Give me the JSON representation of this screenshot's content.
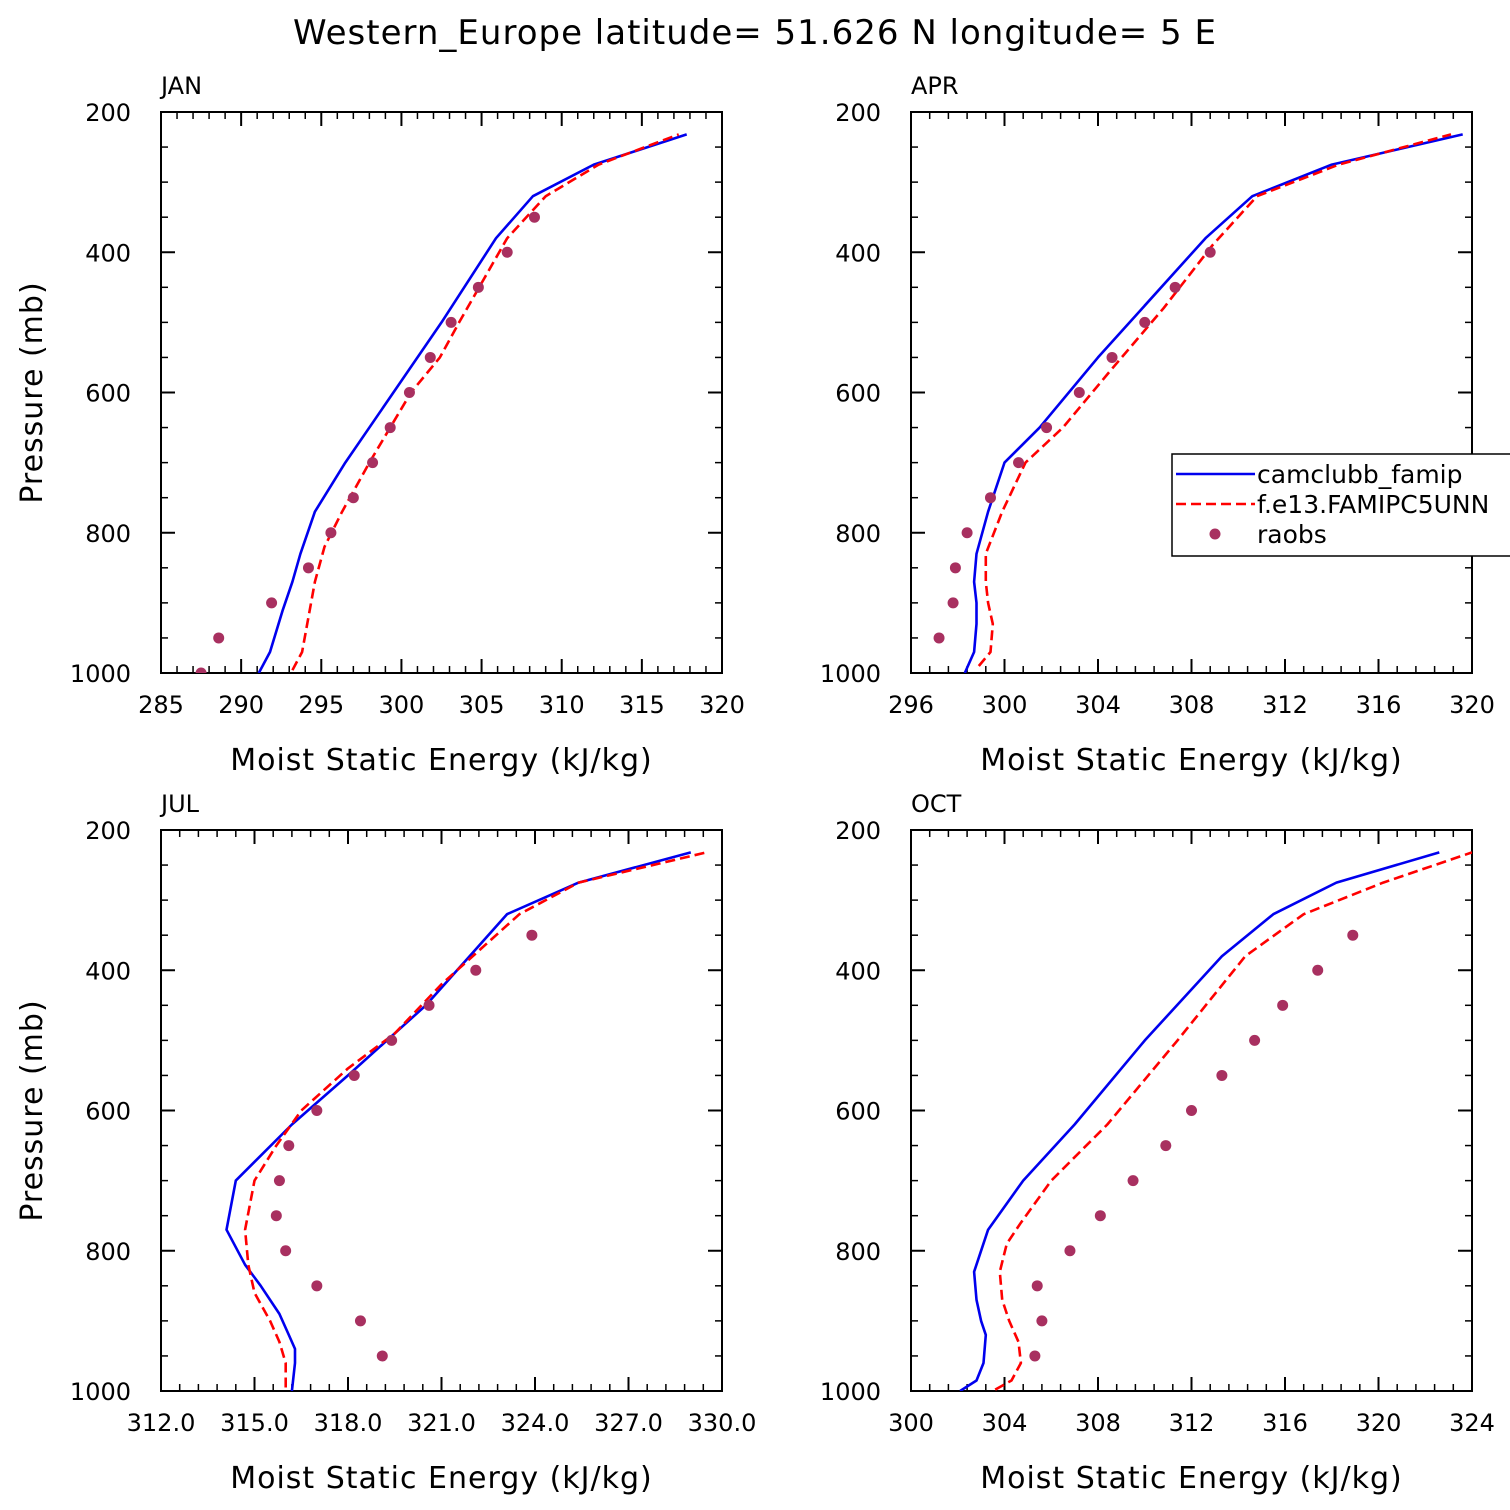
{
  "figure": {
    "title": "Western_Europe  latitude= 51.626 N longitude= 5 E"
  },
  "chart_data": [
    {
      "type": "line",
      "title": "JAN",
      "xlabel": "Moist Static Energy (kJ/kg)",
      "ylabel": "Pressure (mb)",
      "xlim": [
        285,
        320
      ],
      "ylim": [
        1000,
        200
      ],
      "y_reversed": true,
      "xticks": [
        285,
        290,
        295,
        300,
        305,
        310,
        315,
        320
      ],
      "xtick_labels": [
        "285",
        "290",
        "295",
        "300",
        "305",
        "310",
        "315",
        "320"
      ],
      "yticks": [
        200,
        400,
        600,
        800,
        1000
      ],
      "ytick_labels": [
        "200",
        "400",
        "600",
        "800",
        "1000"
      ],
      "legend": false,
      "series": [
        {
          "name": "camclubb_famip",
          "style": "solid",
          "color": "#0000ee",
          "x": [
            291.1,
            291.8,
            292.6,
            293.2,
            293.7,
            294.6,
            296.5,
            299.5,
            302.5,
            305.9,
            308.2,
            312.0,
            317.8
          ],
          "y": [
            1000,
            970,
            910,
            870,
            830,
            770,
            700,
            600,
            500,
            380,
            320,
            275,
            232
          ]
        },
        {
          "name": "f.e13.FAMIPC5UNNB",
          "style": "dashed",
          "color": "#ff0000",
          "x": [
            293.2,
            293.8,
            294.2,
            294.6,
            295.2,
            296.3,
            298.0,
            300.6,
            302.4,
            303.6,
            306.6,
            309.0,
            312.3,
            317.3
          ],
          "y": [
            996,
            970,
            920,
            870,
            820,
            770,
            700,
            600,
            550,
            500,
            380,
            320,
            275,
            232
          ]
        },
        {
          "name": "raobs",
          "style": "markers",
          "color": "#a83060",
          "x": [
            287.5,
            288.6,
            291.9,
            294.2,
            295.6,
            297.0,
            298.2,
            299.3,
            300.5,
            301.8,
            303.1,
            304.8,
            306.6,
            308.3
          ],
          "y": [
            1000,
            950,
            900,
            850,
            800,
            750,
            700,
            650,
            600,
            550,
            500,
            450,
            400,
            350
          ]
        }
      ]
    },
    {
      "type": "line",
      "title": "APR",
      "xlabel": "Moist Static Energy (kJ/kg)",
      "ylabel": "",
      "xlim": [
        296,
        320
      ],
      "ylim": [
        1000,
        200
      ],
      "y_reversed": true,
      "xticks": [
        296,
        300,
        304,
        308,
        312,
        316,
        320
      ],
      "xtick_labels": [
        "296",
        "300",
        "304",
        "308",
        "312",
        "316",
        "320"
      ],
      "yticks": [
        200,
        400,
        600,
        800,
        1000
      ],
      "ytick_labels": [
        "200",
        "400",
        "600",
        "800",
        "1000"
      ],
      "legend": true,
      "legend_position": "right",
      "legend_labels": [
        "camclubb_famip",
        "f.e13.FAMIPC5UNN",
        "raobs"
      ],
      "series": [
        {
          "name": "camclubb_famip",
          "style": "solid",
          "color": "#0000ee",
          "x": [
            298.3,
            298.7,
            298.8,
            298.8,
            298.7,
            298.8,
            299.3,
            300.0,
            301.5,
            304.0,
            308.6,
            310.6,
            314.0,
            319.6
          ],
          "y": [
            1000,
            970,
            930,
            900,
            870,
            830,
            770,
            700,
            650,
            550,
            380,
            320,
            275,
            232
          ]
        },
        {
          "name": "f.e13.FAMIPC5UNN",
          "style": "dashed",
          "color": "#ff0000",
          "x": [
            298.9,
            299.4,
            299.5,
            299.3,
            299.2,
            299.2,
            299.9,
            300.9,
            302.5,
            304.5,
            306.8,
            308.9,
            310.8,
            314.3,
            319.1
          ],
          "y": [
            990,
            970,
            930,
            900,
            870,
            830,
            770,
            700,
            650,
            570,
            480,
            390,
            320,
            275,
            232
          ]
        },
        {
          "name": "raobs",
          "style": "markers",
          "color": "#a83060",
          "x": [
            297.2,
            297.8,
            297.9,
            298.4,
            299.4,
            300.6,
            301.8,
            303.2,
            304.6,
            306.0,
            307.3,
            308.8
          ],
          "y": [
            950,
            900,
            850,
            800,
            750,
            700,
            650,
            600,
            550,
            500,
            450,
            400
          ]
        }
      ]
    },
    {
      "type": "line",
      "title": "JUL",
      "xlabel": "Moist Static Energy (kJ/kg)",
      "ylabel": "Pressure (mb)",
      "xlim": [
        312,
        330
      ],
      "ylim": [
        1000,
        200
      ],
      "y_reversed": true,
      "xticks": [
        312,
        315,
        318,
        321,
        324,
        327,
        330
      ],
      "xtick_labels": [
        "312.0",
        "315.0",
        "318.0",
        "321.0",
        "324.0",
        "327.0",
        "330.0"
      ],
      "yticks": [
        200,
        400,
        600,
        800,
        1000
      ],
      "ytick_labels": [
        "200",
        "400",
        "600",
        "800",
        "1000"
      ],
      "legend": false,
      "series": [
        {
          "name": "camclubb_famip",
          "style": "solid",
          "color": "#0000ee",
          "x": [
            316.2,
            316.3,
            316.3,
            316.1,
            315.8,
            315.2,
            314.7,
            314.1,
            314.4,
            316.2,
            318.0,
            320.5,
            323.1,
            325.4,
            329.0
          ],
          "y": [
            1000,
            960,
            940,
            920,
            890,
            850,
            820,
            770,
            700,
            620,
            550,
            450,
            320,
            275,
            232
          ]
        },
        {
          "name": "f.e13.FAMIPC5UNNB",
          "style": "dashed",
          "color": "#ff0000",
          "x": [
            316.0,
            316.0,
            315.8,
            315.5,
            315.0,
            314.8,
            314.7,
            315.0,
            315.7,
            316.5,
            318.0,
            319.5,
            321.0,
            323.5,
            325.4,
            329.5
          ],
          "y": [
            995,
            960,
            930,
            900,
            860,
            820,
            770,
            700,
            650,
            600,
            540,
            490,
            420,
            320,
            275,
            232
          ]
        },
        {
          "name": "raobs",
          "style": "markers",
          "color": "#a83060",
          "x": [
            319.1,
            318.4,
            317.0,
            316.0,
            315.7,
            315.8,
            316.1,
            317.0,
            318.2,
            319.4,
            320.6,
            322.1,
            323.9
          ],
          "y": [
            950,
            900,
            850,
            800,
            750,
            700,
            650,
            600,
            550,
            500,
            450,
            400,
            350
          ]
        }
      ]
    },
    {
      "type": "line",
      "title": "OCT",
      "xlabel": "Moist Static Energy (kJ/kg)",
      "ylabel": "",
      "xlim": [
        300,
        324
      ],
      "ylim": [
        1000,
        200
      ],
      "y_reversed": true,
      "xticks": [
        300,
        304,
        308,
        312,
        316,
        320,
        324
      ],
      "xtick_labels": [
        "300",
        "304",
        "308",
        "312",
        "316",
        "320",
        "324"
      ],
      "yticks": [
        200,
        400,
        600,
        800,
        1000
      ],
      "ytick_labels": [
        "200",
        "400",
        "600",
        "800",
        "1000"
      ],
      "legend": false,
      "series": [
        {
          "name": "camclubb_famip",
          "style": "solid",
          "color": "#0000ee",
          "x": [
            302.1,
            302.8,
            303.1,
            303.2,
            303.0,
            302.8,
            302.7,
            303.3,
            304.8,
            307.0,
            310.0,
            313.3,
            315.5,
            318.2,
            322.6
          ],
          "y": [
            1000,
            985,
            960,
            920,
            900,
            870,
            830,
            770,
            700,
            620,
            500,
            380,
            320,
            275,
            232
          ]
        },
        {
          "name": "f.e13.FAMIPC5UNNB",
          "style": "dashed",
          "color": "#ff0000",
          "x": [
            303.6,
            304.3,
            304.7,
            304.6,
            304.2,
            303.9,
            303.8,
            304.1,
            304.7,
            306.0,
            308.4,
            311.4,
            314.3,
            316.8,
            320.2,
            324.0
          ],
          "y": [
            998,
            985,
            960,
            930,
            900,
            870,
            830,
            790,
            760,
            700,
            620,
            500,
            380,
            320,
            275,
            232
          ]
        },
        {
          "name": "raobs",
          "style": "markers",
          "color": "#a83060",
          "x": [
            305.3,
            305.6,
            305.4,
            306.8,
            308.1,
            309.5,
            310.9,
            312.0,
            313.3,
            314.7,
            315.9,
            317.4,
            318.9
          ],
          "y": [
            950,
            900,
            850,
            800,
            750,
            700,
            650,
            600,
            550,
            500,
            450,
            400,
            350
          ]
        }
      ]
    }
  ]
}
